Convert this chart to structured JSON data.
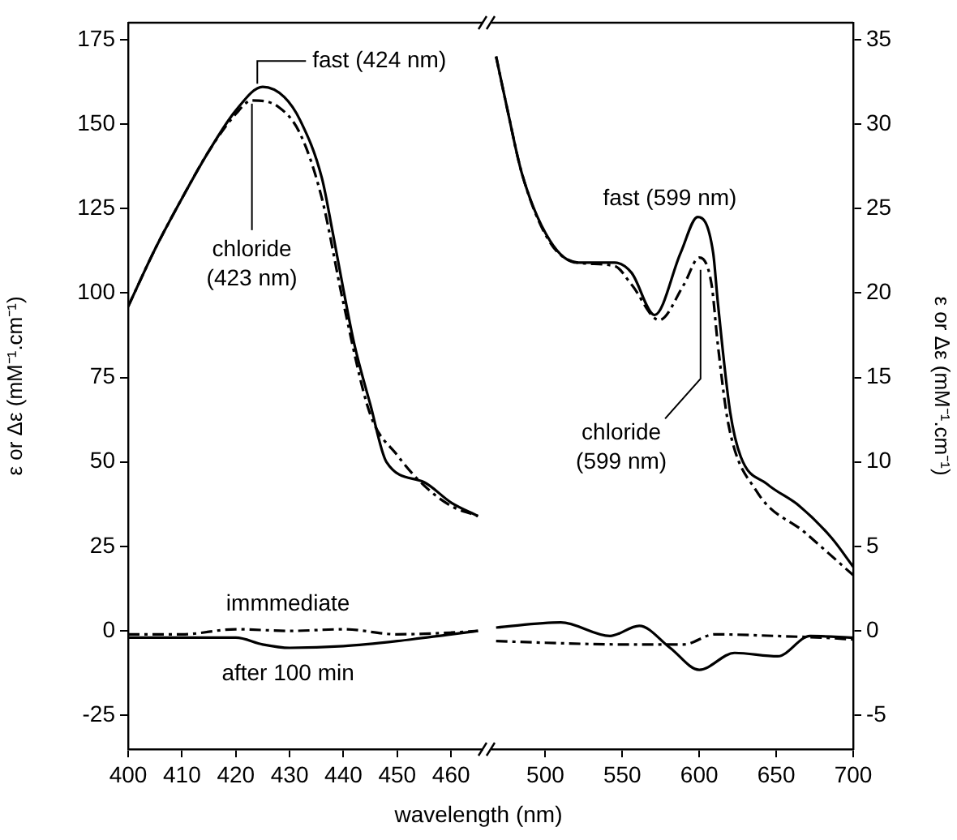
{
  "chart_data": [
    {
      "type": "line",
      "xlabel": "wavelength (nm)",
      "ylabel": "ε or Δε (mM⁻¹.cm⁻¹)",
      "xlim": [
        400,
        466
      ],
      "xticks": [
        400,
        410,
        420,
        430,
        440,
        450,
        460
      ],
      "ylim": [
        -35,
        180
      ],
      "yticks": [
        -25,
        0,
        25,
        50,
        75,
        100,
        125,
        150,
        175
      ],
      "marker": "none",
      "series": [
        {
          "color": "#000000",
          "line_style": "solid",
          "x": [
            400,
            405,
            410,
            415,
            420,
            425,
            429,
            432,
            436,
            438,
            440,
            442,
            445,
            448,
            455,
            460,
            465
          ],
          "values": [
            96,
            113,
            128,
            142,
            154,
            161,
            158,
            151,
            134,
            118,
            101,
            85,
            67,
            50,
            44,
            38,
            34
          ]
        },
        {
          "color": "#000000",
          "line_style": "dashed",
          "x": [
            400,
            405,
            410,
            415,
            420,
            423,
            428,
            432,
            436,
            440,
            445,
            450,
            455,
            460,
            465
          ],
          "values": [
            96,
            113,
            128,
            142,
            153,
            157,
            155,
            147,
            128,
            97,
            64,
            52,
            43,
            37,
            34
          ]
        },
        {
          "color": "#000000",
          "line_style": "dashed",
          "x": [
            400,
            410,
            420,
            430,
            440,
            450,
            460,
            465
          ],
          "values": [
            -1,
            -1,
            0.5,
            0,
            0.5,
            -1,
            -0.5,
            0
          ]
        },
        {
          "color": "#000000",
          "line_style": "solid",
          "x": [
            400,
            410,
            420,
            425,
            430,
            440,
            450,
            460,
            465
          ],
          "values": [
            -2,
            -2,
            -2,
            -4,
            -5,
            -4.5,
            -3,
            -1,
            0
          ]
        }
      ],
      "annotations": [
        {
          "text": "fast (424 nm)",
          "x": 424,
          "y": 161
        },
        {
          "text": "chloride\n(423 nm)",
          "x": 423,
          "y": 157
        },
        "immmediate",
        "after 100 min"
      ]
    },
    {
      "type": "line",
      "xlim": [
        465,
        700
      ],
      "xticks": [
        500,
        550,
        600,
        650,
        700
      ],
      "y2label": "ε or Δε (mM⁻¹.cm⁻¹)",
      "y2lim": [
        -7,
        36
      ],
      "y2ticks": [
        -5,
        0,
        5,
        10,
        15,
        20,
        25,
        30,
        35
      ],
      "marker": "none",
      "series": [
        {
          "color": "#000000",
          "line_style": "solid",
          "axis": "y2",
          "x": [
            468,
            475,
            485,
            503,
            521,
            545,
            556,
            571,
            588,
            599,
            609,
            612,
            620,
            627,
            644,
            665,
            686,
            700
          ],
          "values": [
            34,
            31,
            27,
            23.1,
            21.8,
            21.8,
            21.2,
            18.7,
            22.4,
            24.5,
            22.4,
            19.5,
            13,
            10.3,
            8.7,
            7.4,
            5.5,
            3.8
          ]
        },
        {
          "color": "#000000",
          "line_style": "dashed",
          "axis": "y2",
          "x": [
            468,
            475,
            485,
            503,
            521,
            545,
            556,
            574,
            590,
            600,
            608,
            612,
            619,
            637,
            669,
            700
          ],
          "values": [
            34,
            31,
            27,
            23,
            21.8,
            21.6,
            20.5,
            18.4,
            20.5,
            22.1,
            20.5,
            17,
            12.2,
            8.3,
            5.8,
            3.3
          ]
        },
        {
          "color": "#000000",
          "line_style": "dashed",
          "axis": "y2",
          "x": [
            468,
            500,
            550,
            590,
            610,
            650,
            680,
            700
          ],
          "values": [
            -0.6,
            -0.7,
            -0.8,
            -0.8,
            -0.2,
            -0.3,
            -0.4,
            -0.5
          ]
        },
        {
          "color": "#000000",
          "line_style": "solid",
          "axis": "y2",
          "x": [
            468,
            510,
            542,
            561,
            581,
            600,
            623,
            651,
            672,
            700
          ],
          "values": [
            0.2,
            0.5,
            -0.3,
            0.3,
            -1,
            -2.3,
            -1.3,
            -1.5,
            -0.3,
            -0.4
          ]
        }
      ],
      "annotations": [
        "fast (599 nm)",
        "chloride\n(599 nm)"
      ]
    }
  ]
}
